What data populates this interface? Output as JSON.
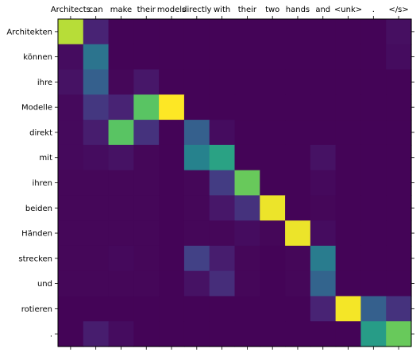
{
  "chart_data": {
    "type": "heatmap",
    "title": "",
    "xlabel": "",
    "ylabel": "",
    "x_labels": [
      "Architects",
      "can",
      "make",
      "their",
      "models",
      "directly",
      "with",
      "their",
      "two",
      "hands",
      "and",
      "<unk>",
      ".",
      "</s>"
    ],
    "y_labels": [
      "Architekten",
      "können",
      "ihre",
      "Modelle",
      "direkt",
      "mit",
      "ihren",
      "beiden",
      "Händen",
      "strecken",
      "und",
      "rotieren",
      "."
    ],
    "x_axis_position": "top",
    "colormap": "viridis",
    "value_range": [
      0,
      1
    ],
    "grid": false,
    "values": [
      [
        0.92,
        0.12,
        0.01,
        0.01,
        0.01,
        0.01,
        0.01,
        0.01,
        0.01,
        0.01,
        0.01,
        0.01,
        0.01,
        0.05
      ],
      [
        0.04,
        0.48,
        0.01,
        0.01,
        0.01,
        0.01,
        0.01,
        0.01,
        0.01,
        0.01,
        0.01,
        0.01,
        0.01,
        0.04
      ],
      [
        0.06,
        0.38,
        0.02,
        0.08,
        0.01,
        0.01,
        0.01,
        0.01,
        0.01,
        0.01,
        0.01,
        0.01,
        0.01,
        0.01
      ],
      [
        0.03,
        0.2,
        0.12,
        0.8,
        1.0,
        0.01,
        0.01,
        0.01,
        0.01,
        0.01,
        0.01,
        0.01,
        0.01,
        0.01
      ],
      [
        0.03,
        0.1,
        0.8,
        0.18,
        0.01,
        0.38,
        0.04,
        0.01,
        0.01,
        0.01,
        0.01,
        0.01,
        0.01,
        0.01
      ],
      [
        0.03,
        0.04,
        0.06,
        0.02,
        0.01,
        0.55,
        0.68,
        0.01,
        0.01,
        0.01,
        0.06,
        0.01,
        0.01,
        0.01
      ],
      [
        0.02,
        0.02,
        0.02,
        0.02,
        0.01,
        0.02,
        0.22,
        0.82,
        0.01,
        0.01,
        0.03,
        0.01,
        0.01,
        0.01
      ],
      [
        0.02,
        0.02,
        0.02,
        0.02,
        0.01,
        0.02,
        0.08,
        0.18,
        0.98,
        0.01,
        0.02,
        0.01,
        0.01,
        0.01
      ],
      [
        0.02,
        0.02,
        0.02,
        0.02,
        0.01,
        0.02,
        0.02,
        0.04,
        0.02,
        0.98,
        0.04,
        0.01,
        0.01,
        0.01
      ],
      [
        0.02,
        0.02,
        0.03,
        0.02,
        0.01,
        0.24,
        0.1,
        0.02,
        0.01,
        0.02,
        0.52,
        0.01,
        0.01,
        0.01
      ],
      [
        0.02,
        0.02,
        0.02,
        0.02,
        0.01,
        0.06,
        0.16,
        0.02,
        0.01,
        0.02,
        0.4,
        0.01,
        0.01,
        0.01
      ],
      [
        0.01,
        0.01,
        0.01,
        0.01,
        0.01,
        0.01,
        0.01,
        0.01,
        0.01,
        0.01,
        0.12,
        0.99,
        0.38,
        0.18
      ],
      [
        0.01,
        0.1,
        0.04,
        0.01,
        0.01,
        0.01,
        0.01,
        0.01,
        0.01,
        0.01,
        0.01,
        0.01,
        0.66,
        0.82
      ]
    ]
  }
}
